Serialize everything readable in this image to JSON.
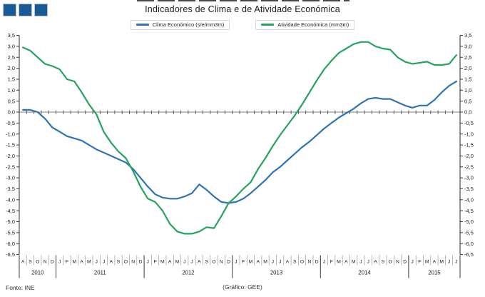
{
  "logo": {
    "square_color": "#1A5A96",
    "square_count": 3
  },
  "title": "Indicadores de Clima e de Atividade Económica",
  "legend": {
    "items": [
      {
        "label": "Clima Económico (s/e/mm3m)",
        "color": "#2E74B5"
      },
      {
        "label": "Atividade Económica (mm3m)",
        "color": "#27A35E"
      }
    ]
  },
  "footer": {
    "source": "Fonte: INE",
    "credit": "(Gráfico: GEE)"
  },
  "chart_data": {
    "type": "line",
    "title": "Indicadores de Clima e de Atividade Económica",
    "grid": "zero-line-only",
    "legend_position": "top",
    "y_axis": {
      "min": -6.5,
      "max": 3.5,
      "step": 0.5,
      "decimal_separator": "comma",
      "ticks": [
        "3,5",
        "3,0",
        "2,5",
        "2,0",
        "1,5",
        "1,0",
        "0,5",
        "0,0",
        "-0,5",
        "-1,0",
        "-1,5",
        "-2,0",
        "-2,5",
        "-3,0",
        "-3,5",
        "-4,0",
        "-4,5",
        "-5,0",
        "-5,5",
        "-6,0",
        "-6,5"
      ],
      "mirrored_right_axis": true
    },
    "x_axis": {
      "years": [
        {
          "label": "2010",
          "months": [
            "A",
            "S",
            "O",
            "N",
            "D"
          ]
        },
        {
          "label": "2011",
          "months": [
            "J",
            "F",
            "M",
            "A",
            "M",
            "J",
            "J",
            "A",
            "S",
            "O",
            "N",
            "D"
          ]
        },
        {
          "label": "2012",
          "months": [
            "J",
            "F",
            "M",
            "A",
            "M",
            "J",
            "J",
            "A",
            "S",
            "O",
            "N",
            "D"
          ]
        },
        {
          "label": "2013",
          "months": [
            "J",
            "F",
            "M",
            "A",
            "M",
            "J",
            "J",
            "A",
            "S",
            "O",
            "N",
            "D"
          ]
        },
        {
          "label": "2014",
          "months": [
            "J",
            "F",
            "M",
            "A",
            "M",
            "J",
            "J",
            "A",
            "S",
            "O",
            "N",
            "D"
          ]
        },
        {
          "label": "2015",
          "months": [
            "J",
            "F",
            "M",
            "A",
            "M",
            "J",
            "J"
          ]
        }
      ]
    },
    "series": [
      {
        "name": "Clima Económico (s/e/mm3m)",
        "color": "#2E74B5",
        "values": [
          0.1,
          0.1,
          0.0,
          -0.3,
          -0.7,
          -0.9,
          -1.1,
          -1.2,
          -1.3,
          -1.5,
          -1.7,
          -1.85,
          -2.0,
          -2.15,
          -2.3,
          -2.6,
          -3.0,
          -3.4,
          -3.75,
          -3.9,
          -3.95,
          -3.95,
          -3.85,
          -3.7,
          -3.3,
          -3.55,
          -3.85,
          -4.1,
          -4.15,
          -4.1,
          -3.95,
          -3.7,
          -3.4,
          -3.1,
          -2.75,
          -2.5,
          -2.2,
          -1.9,
          -1.6,
          -1.35,
          -1.05,
          -0.75,
          -0.5,
          -0.25,
          -0.05,
          0.15,
          0.4,
          0.6,
          0.65,
          0.6,
          0.6,
          0.45,
          0.3,
          0.2,
          0.3,
          0.3,
          0.55,
          0.9,
          1.2,
          1.4
        ]
      },
      {
        "name": "Atividade Económica (mm3m)",
        "color": "#27A35E",
        "values": [
          2.95,
          2.8,
          2.5,
          2.2,
          2.1,
          1.95,
          1.5,
          1.4,
          0.9,
          0.35,
          -0.1,
          -0.9,
          -1.4,
          -1.8,
          -2.1,
          -2.7,
          -3.4,
          -3.95,
          -4.1,
          -4.5,
          -5.1,
          -5.45,
          -5.55,
          -5.55,
          -5.45,
          -5.25,
          -5.3,
          -4.75,
          -4.15,
          -3.85,
          -3.5,
          -3.2,
          -2.6,
          -2.1,
          -1.55,
          -1.05,
          -0.6,
          -0.15,
          0.35,
          0.9,
          1.45,
          1.95,
          2.35,
          2.7,
          2.9,
          3.1,
          3.2,
          3.2,
          3.0,
          2.9,
          2.85,
          2.5,
          2.3,
          2.2,
          2.25,
          2.3,
          2.15,
          2.15,
          2.2,
          2.6
        ]
      }
    ]
  }
}
